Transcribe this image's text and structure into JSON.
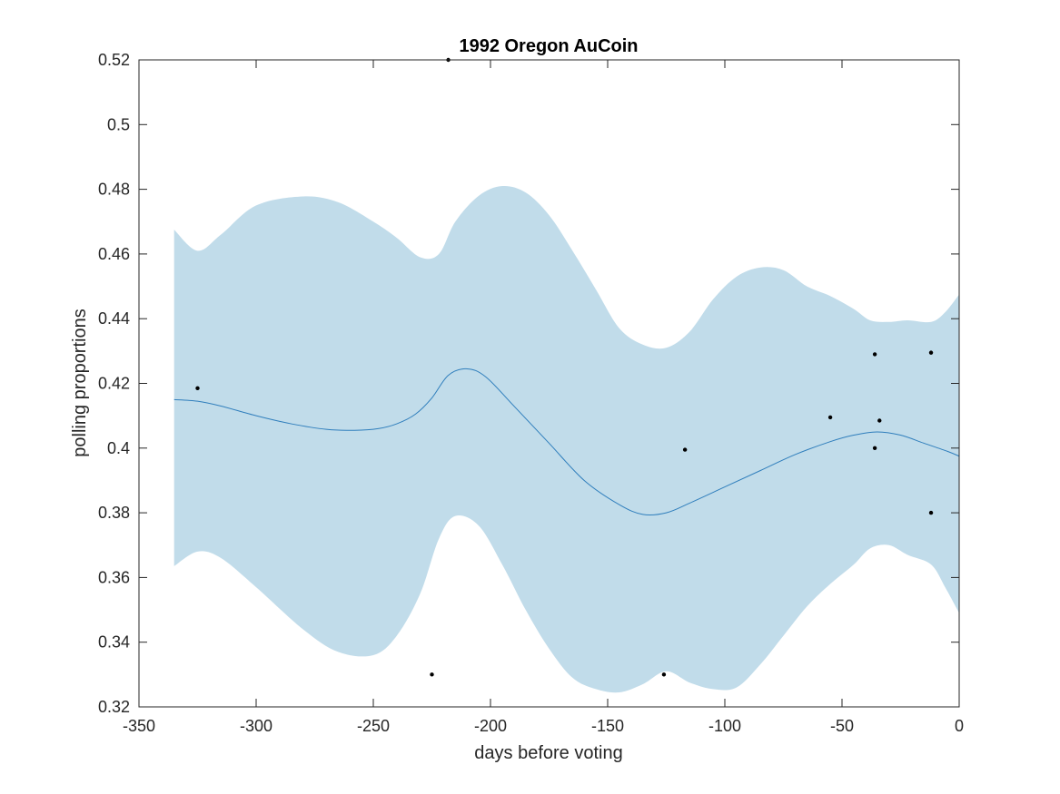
{
  "chart_data": {
    "type": "line",
    "title": "1992 Oregon AuCoin",
    "xlabel": "days before voting",
    "ylabel": "polling proportions",
    "xlim": [
      -350,
      0
    ],
    "ylim": [
      0.32,
      0.52
    ],
    "xticks": [
      -350,
      -300,
      -250,
      -200,
      -150,
      -100,
      -50,
      0
    ],
    "xtick_labels": [
      "-350",
      "-300",
      "-250",
      "-200",
      "-150",
      "-100",
      "-50",
      "0"
    ],
    "yticks": [
      0.32,
      0.34,
      0.36,
      0.38,
      0.4,
      0.42,
      0.44,
      0.46,
      0.48,
      0.5,
      0.52
    ],
    "ytick_labels": [
      "0.32",
      "0.34",
      "0.36",
      "0.38",
      "0.4",
      "0.42",
      "0.44",
      "0.46",
      "0.48",
      "0.5",
      "0.52"
    ],
    "grid": false,
    "colors": {
      "band": "#c1dcea",
      "line": "#2f7ebc",
      "points": "#000000",
      "axes": "#262626"
    },
    "band": {
      "x": [
        -335,
        -325,
        -315,
        -300,
        -280,
        -265,
        -250,
        -240,
        -230,
        -222,
        -215,
        -205,
        -195,
        -185,
        -175,
        -165,
        -155,
        -145,
        -135,
        -125,
        -115,
        -105,
        -95,
        -85,
        -75,
        -65,
        -55,
        -45,
        -38,
        -30,
        -22,
        -12,
        -6,
        0
      ],
      "upper": [
        0.4675,
        0.461,
        0.466,
        0.475,
        0.4778,
        0.476,
        0.47,
        0.465,
        0.459,
        0.46,
        0.47,
        0.478,
        0.481,
        0.479,
        0.472,
        0.461,
        0.449,
        0.437,
        0.432,
        0.431,
        0.436,
        0.446,
        0.453,
        0.4558,
        0.455,
        0.45,
        0.447,
        0.443,
        0.4395,
        0.439,
        0.4395,
        0.439,
        0.442,
        0.4475
      ],
      "lower": [
        0.3635,
        0.368,
        0.366,
        0.357,
        0.344,
        0.337,
        0.336,
        0.342,
        0.355,
        0.372,
        0.379,
        0.376,
        0.364,
        0.35,
        0.338,
        0.329,
        0.3255,
        0.3245,
        0.327,
        0.331,
        0.3275,
        0.3255,
        0.326,
        0.333,
        0.342,
        0.351,
        0.358,
        0.364,
        0.369,
        0.37,
        0.367,
        0.364,
        0.357,
        0.349
      ]
    },
    "series": [
      {
        "x": [
          -335,
          -325,
          -315,
          -300,
          -285,
          -270,
          -258,
          -248,
          -240,
          -232,
          -225,
          -218,
          -210,
          -202,
          -190,
          -175,
          -160,
          -145,
          -135,
          -125,
          -115,
          -100,
          -85,
          -70,
          -55,
          -45,
          -35,
          -25,
          -15,
          -5,
          0
        ],
        "values": [
          0.415,
          0.4145,
          0.413,
          0.41,
          0.4075,
          0.4058,
          0.4055,
          0.406,
          0.4075,
          0.4105,
          0.4155,
          0.4225,
          0.4245,
          0.422,
          0.413,
          0.4015,
          0.39,
          0.3825,
          0.3795,
          0.38,
          0.383,
          0.388,
          0.393,
          0.398,
          0.402,
          0.404,
          0.405,
          0.404,
          0.4015,
          0.399,
          0.3975
        ]
      }
    ],
    "points": [
      {
        "x": -325,
        "y": 0.4185
      },
      {
        "x": -218,
        "y": 0.52
      },
      {
        "x": -225,
        "y": 0.33
      },
      {
        "x": -126,
        "y": 0.33
      },
      {
        "x": -117,
        "y": 0.3995
      },
      {
        "x": -55,
        "y": 0.4095
      },
      {
        "x": -36,
        "y": 0.429
      },
      {
        "x": -36,
        "y": 0.4
      },
      {
        "x": -34,
        "y": 0.4085
      },
      {
        "x": -12,
        "y": 0.4295
      },
      {
        "x": -12,
        "y": 0.38
      }
    ]
  }
}
